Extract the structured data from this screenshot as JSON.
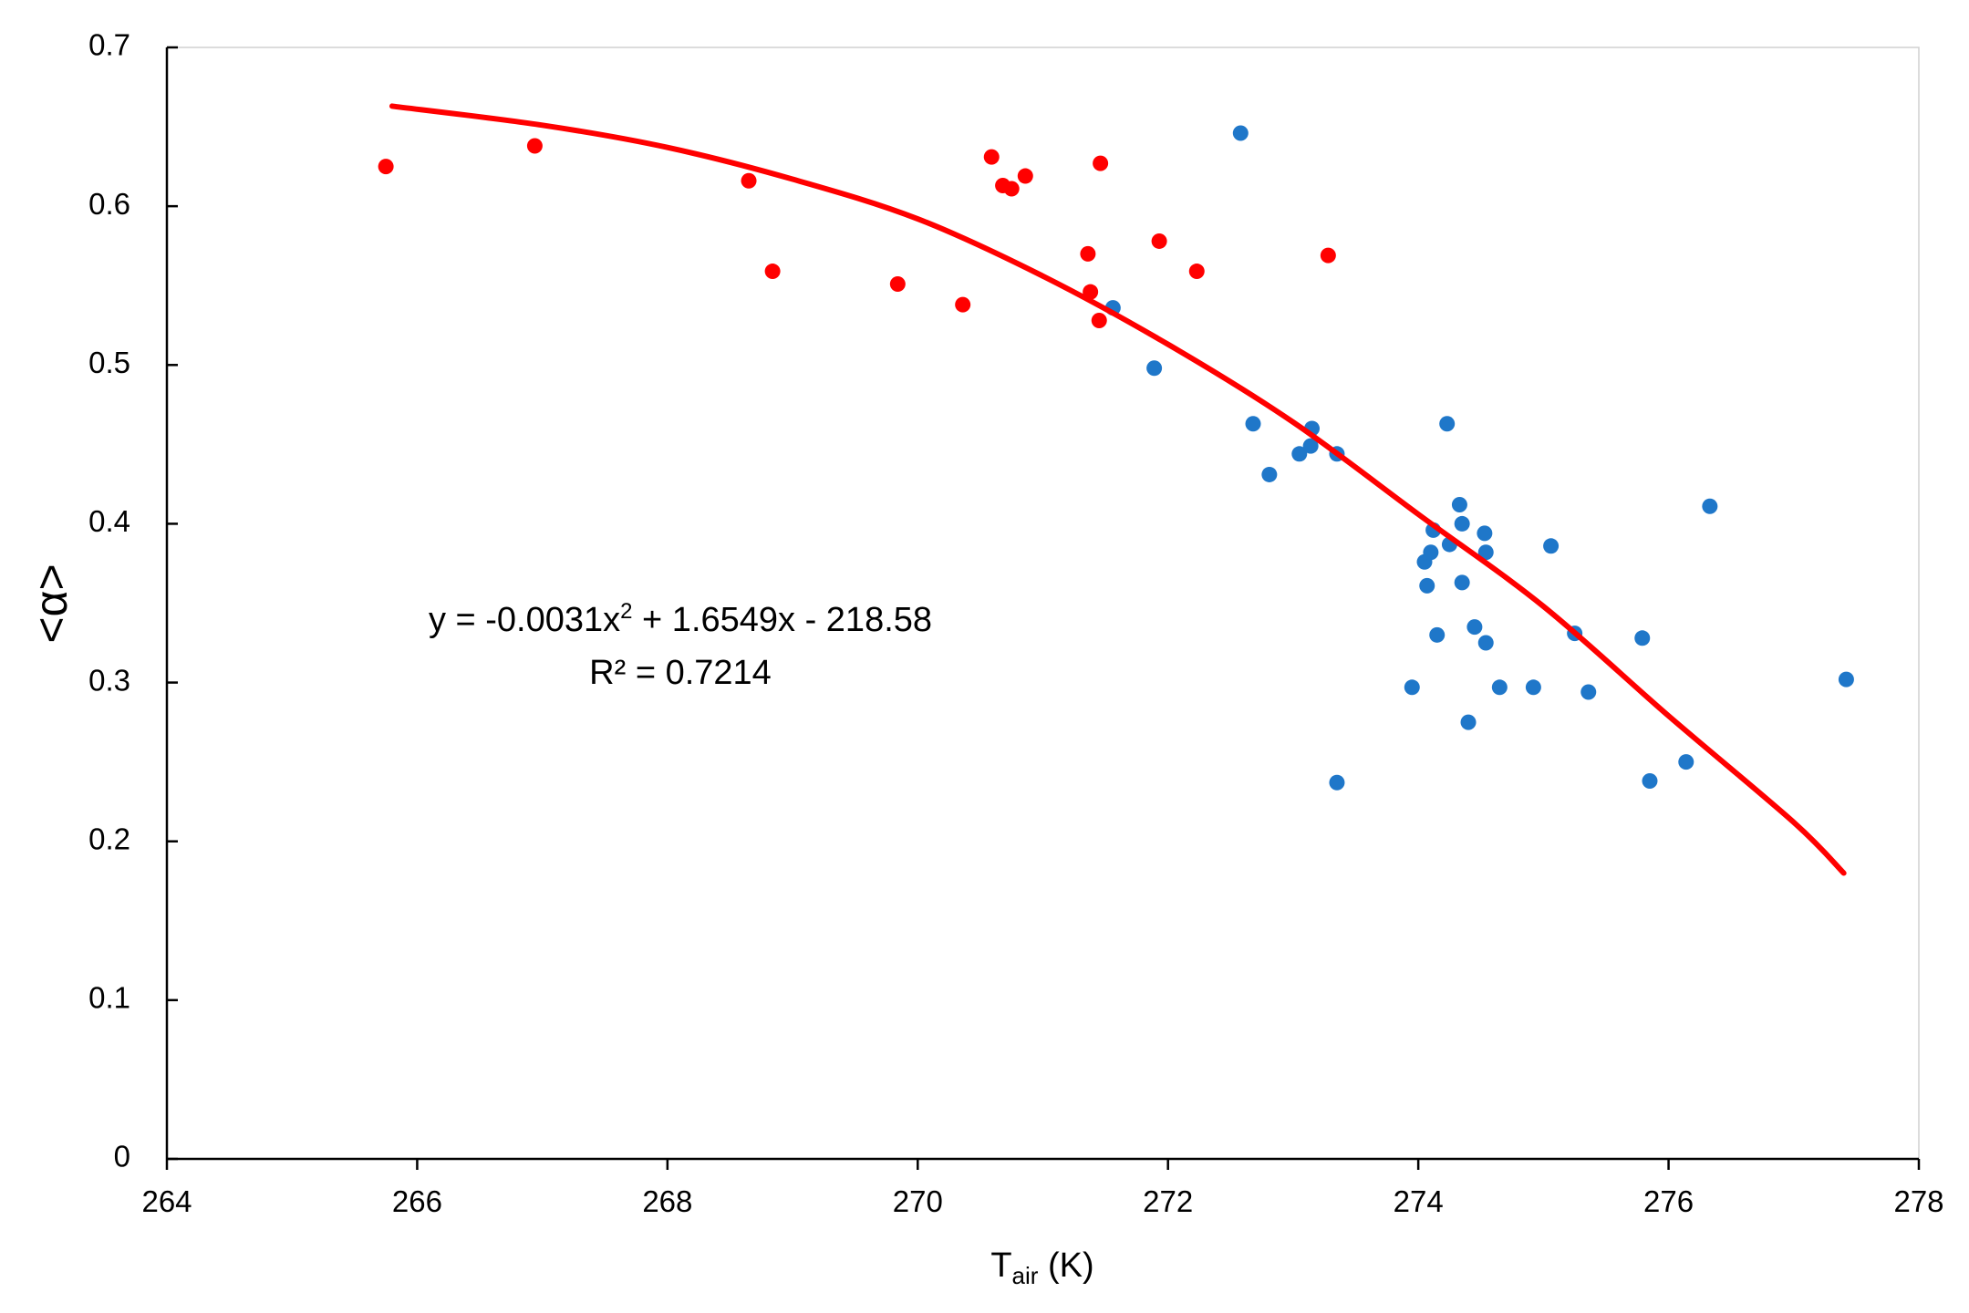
{
  "chart_data": {
    "type": "scatter",
    "ylabel": "<α>",
    "xlabel": [
      "T",
      "air",
      " (K)"
    ],
    "annotation": {
      "line1": [
        "y = -0.0031x",
        "2",
        " + 1.6549x - 218.58"
      ],
      "line2": "R² = 0.7214"
    },
    "xlim": [
      264,
      278
    ],
    "xticks": [
      264,
      266,
      268,
      270,
      272,
      274,
      276,
      278
    ],
    "ylim": [
      0,
      0.7
    ],
    "yticks": [
      0,
      0.1,
      0.2,
      0.3,
      0.4,
      0.5,
      0.6,
      0.7
    ],
    "series": [
      {
        "color": "#ff0000",
        "x": [
          265.75,
          266.94,
          268.65,
          268.84,
          269.84,
          270.36,
          270.59,
          270.68,
          270.75,
          270.86,
          271.36,
          271.38,
          271.45,
          271.46,
          271.93,
          272.23,
          273.28
        ],
        "values": [
          0.625,
          0.638,
          0.616,
          0.559,
          0.551,
          0.538,
          0.631,
          0.613,
          0.611,
          0.619,
          0.57,
          0.546,
          0.528,
          0.627,
          0.578,
          0.559,
          0.569
        ]
      },
      {
        "color": "#1f77c9",
        "x": [
          272.58,
          271.56,
          271.89,
          272.68,
          272.81,
          273.05,
          273.15,
          273.14,
          273.35,
          273.35,
          273.95,
          274.05,
          274.07,
          274.1,
          274.12,
          274.15,
          274.23,
          274.25,
          274.33,
          274.35,
          274.35,
          274.4,
          274.45,
          274.53,
          274.54,
          274.54,
          274.65,
          274.92,
          275.06,
          275.25,
          275.36,
          275.79,
          275.85,
          276.14,
          276.33,
          277.42
        ],
        "values": [
          0.646,
          0.536,
          0.498,
          0.463,
          0.431,
          0.444,
          0.46,
          0.449,
          0.444,
          0.237,
          0.297,
          0.376,
          0.361,
          0.382,
          0.396,
          0.33,
          0.463,
          0.387,
          0.412,
          0.4,
          0.363,
          0.275,
          0.335,
          0.394,
          0.382,
          0.325,
          0.297,
          0.297,
          0.386,
          0.331,
          0.294,
          0.328,
          0.238,
          0.25,
          0.411,
          0.302
        ]
      }
    ],
    "fit": {
      "color": "#ff0000",
      "x": [
        265.8,
        267,
        268,
        269,
        270,
        271,
        272,
        273,
        274,
        275,
        276,
        277,
        277.4
      ],
      "values": [
        0.663,
        0.651,
        0.637,
        0.617,
        0.592,
        0.556,
        0.513,
        0.464,
        0.406,
        0.348,
        0.279,
        0.212,
        0.18
      ]
    }
  }
}
